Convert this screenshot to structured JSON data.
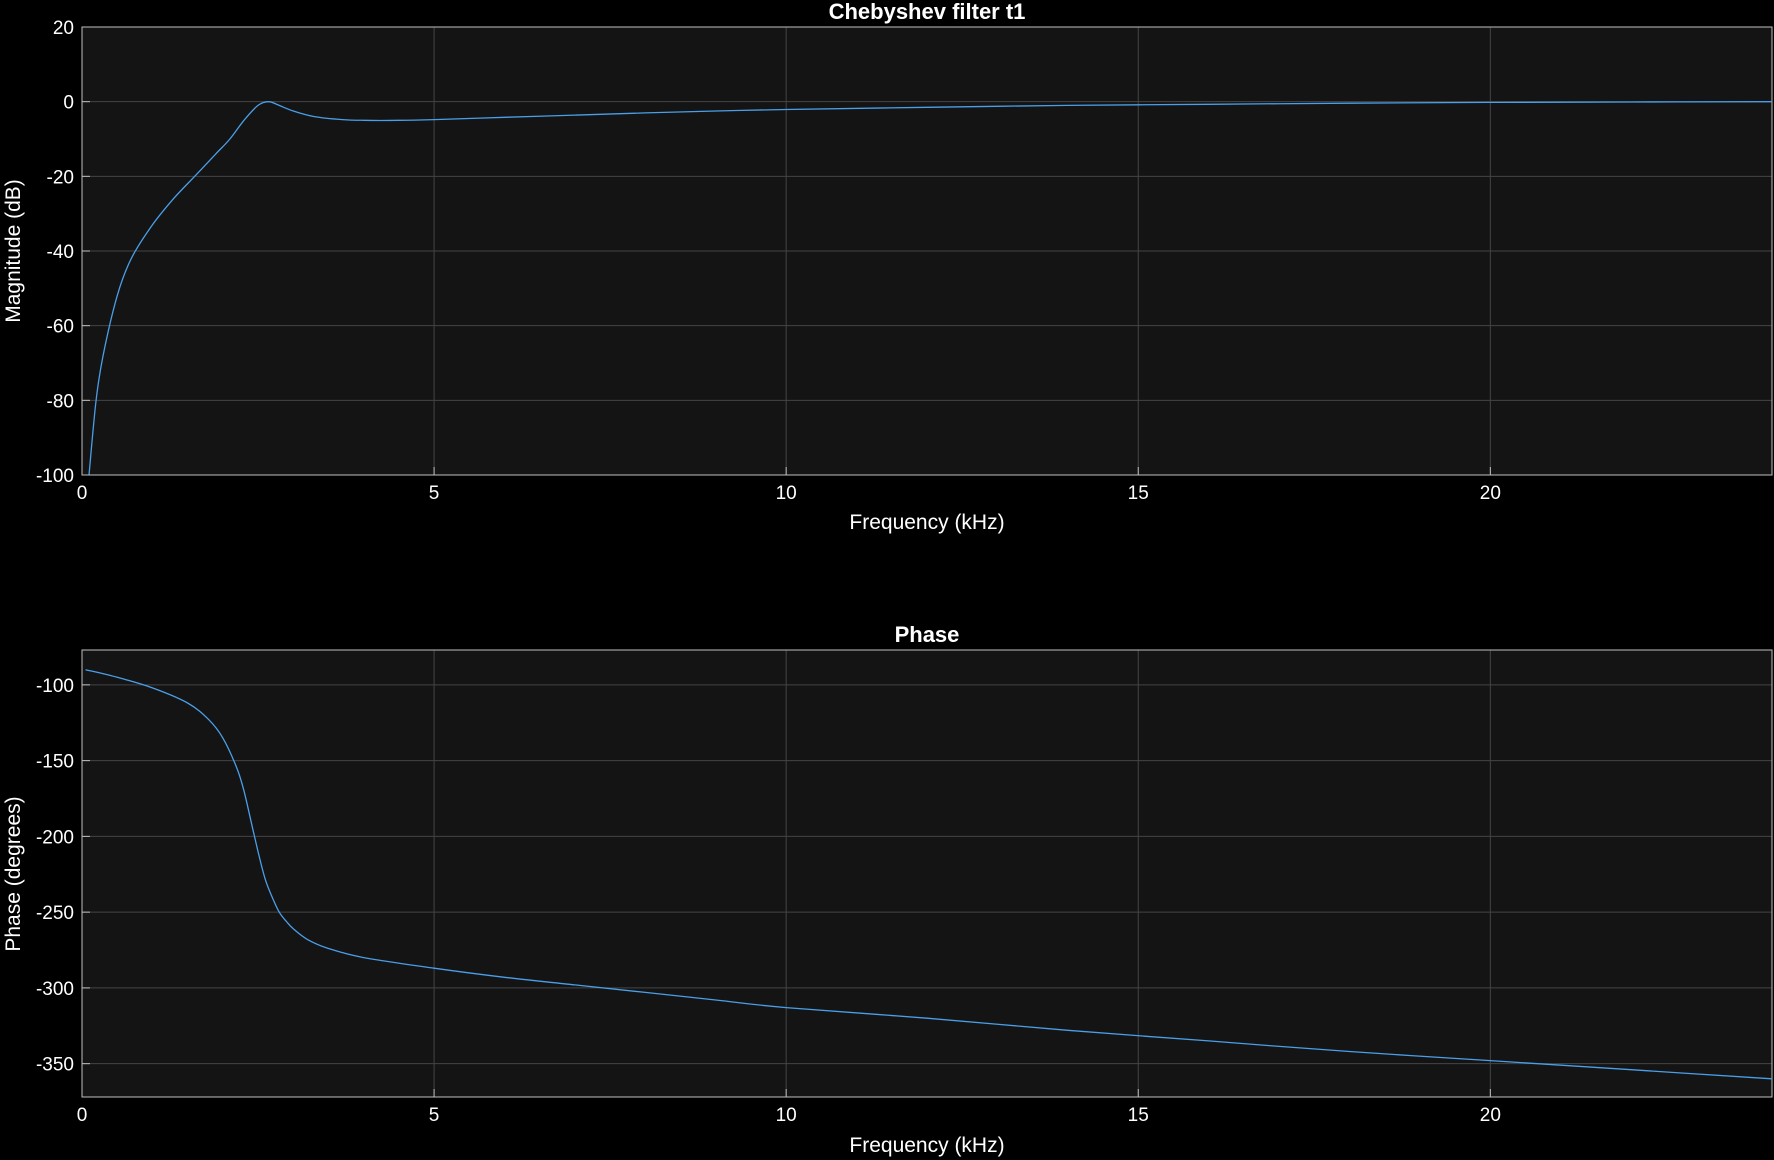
{
  "chart_data": [
    {
      "type": "line",
      "title": "Chebyshev filter t1",
      "xlabel": "Frequency (kHz)",
      "ylabel": "Magnitude (dB)",
      "xlim": [
        0,
        24
      ],
      "ylim": [
        -100,
        20
      ],
      "xticks": [
        0,
        5,
        10,
        15,
        20
      ],
      "yticks": [
        20,
        0,
        -20,
        -40,
        -60,
        -80,
        -100
      ],
      "xtick_labels": [
        "0",
        "5",
        "10",
        "15",
        "20"
      ],
      "ytick_labels": [
        "20",
        "0",
        "-20",
        "-40",
        "-60",
        "-80",
        "-100"
      ],
      "grid": true,
      "line_color": "#4a9fe8",
      "series": [
        {
          "x": [
            0.1,
            0.2,
            0.3,
            0.5,
            0.7,
            1.0,
            1.3,
            1.6,
            1.9,
            2.1,
            2.3,
            2.5,
            2.65,
            2.8,
            3.0,
            3.3,
            3.7,
            4.0,
            4.5,
            5.0,
            6.0,
            7.0,
            8.0,
            9.0,
            10.0,
            12.0,
            14.0,
            16.0,
            18.0,
            20.0,
            22.0,
            24.0
          ],
          "y": [
            -100,
            -80,
            -68,
            -52,
            -42,
            -33,
            -26,
            -20,
            -14,
            -10,
            -5,
            -1,
            0,
            -1,
            -2.5,
            -4,
            -4.8,
            -5,
            -5,
            -4.8,
            -4.2,
            -3.6,
            -3,
            -2.5,
            -2.1,
            -1.5,
            -1,
            -0.7,
            -0.4,
            -0.2,
            -0.1,
            0
          ]
        }
      ]
    },
    {
      "type": "line",
      "title": "Phase",
      "xlabel": "Frequency (kHz)",
      "ylabel": "Phase (degrees)",
      "xlim": [
        0,
        24
      ],
      "ylim": [
        -372,
        -77
      ],
      "xticks": [
        0,
        5,
        10,
        15,
        20
      ],
      "yticks": [
        -100,
        -150,
        -200,
        -250,
        -300,
        -350
      ],
      "xtick_labels": [
        "0",
        "5",
        "10",
        "15",
        "20"
      ],
      "ytick_labels": [
        "-100",
        "-150",
        "-200",
        "-250",
        "-300",
        "-350"
      ],
      "grid": true,
      "line_color": "#4a9fe8",
      "series": [
        {
          "x": [
            0.05,
            0.5,
            1.0,
            1.5,
            1.8,
            2.0,
            2.2,
            2.3,
            2.4,
            2.5,
            2.6,
            2.7,
            2.8,
            2.9,
            3.0,
            3.2,
            3.5,
            4.0,
            5.0,
            6.0,
            7.0,
            8.0,
            9.0,
            10.0,
            12.0,
            14.0,
            16.0,
            18.0,
            20.0,
            22.0,
            24.0
          ],
          "y": [
            -90,
            -95,
            -102,
            -112,
            -123,
            -135,
            -155,
            -170,
            -190,
            -210,
            -228,
            -240,
            -250,
            -256,
            -261,
            -268,
            -274,
            -280,
            -287,
            -293,
            -298,
            -303,
            -308,
            -313,
            -320,
            -328,
            -335,
            -342,
            -348,
            -354,
            -360
          ]
        }
      ]
    }
  ]
}
